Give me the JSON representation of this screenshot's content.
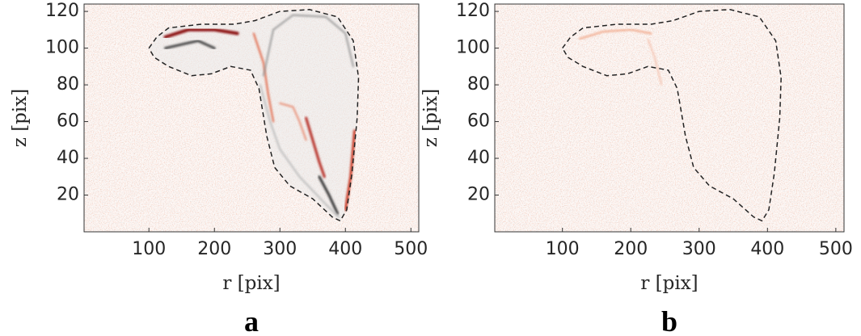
{
  "chart_data": [
    {
      "type": "heatmap",
      "panel_label": "a",
      "xlabel": "r [pix]",
      "ylabel": "z [pix]",
      "xlim": [
        1,
        512
      ],
      "ylim": [
        0,
        124
      ],
      "xticks": [
        100,
        200,
        300,
        400,
        500
      ],
      "yticks": [
        20,
        40,
        60,
        80,
        100,
        120
      ]
    },
    {
      "type": "heatmap",
      "panel_label": "b",
      "xlabel": "r [pix]",
      "ylabel": "z [pix]",
      "xlim": [
        1,
        512
      ],
      "ylim": [
        0,
        124
      ],
      "xticks": [
        100,
        200,
        300,
        400,
        500
      ],
      "yticks": [
        20,
        40,
        60,
        80,
        100,
        120
      ]
    }
  ]
}
